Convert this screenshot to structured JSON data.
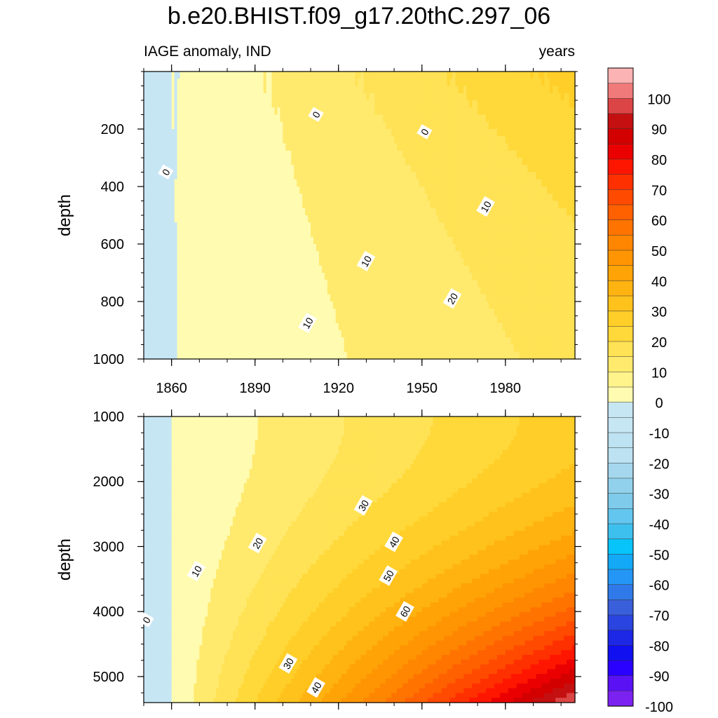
{
  "title": "b.e20.BHIST.f09_g17.20thC.297_06",
  "chart_data": {
    "type": "heatmap",
    "title": "b.e20.BHIST.f09_g17.20thC.297_06",
    "variable": "IAGE anomaly, IND",
    "units": "years",
    "x": {
      "label": "",
      "range": [
        1850,
        2005
      ],
      "ticks": [
        1860,
        1890,
        1920,
        1950,
        1980
      ],
      "tick_labels": [
        "1860",
        "1890",
        "1920",
        "1950",
        "1980"
      ]
    },
    "colorbar": {
      "levels": [
        -100,
        -95,
        -90,
        -85,
        -80,
        -75,
        -70,
        -65,
        -60,
        -55,
        -50,
        -45,
        -40,
        -35,
        -30,
        -25,
        -20,
        -15,
        -10,
        -5,
        0,
        5,
        10,
        15,
        20,
        25,
        30,
        35,
        40,
        45,
        50,
        55,
        60,
        65,
        70,
        75,
        80,
        85,
        90,
        95,
        100
      ],
      "tick_labels": [
        "100",
        "90",
        "80",
        "70",
        "60",
        "50",
        "40",
        "30",
        "20",
        "10",
        "0",
        "-10",
        "-20",
        "-30",
        "-40",
        "-50",
        "-60",
        "-70",
        "-80",
        "-90",
        "-100"
      ],
      "colors": [
        "#7c22f0",
        "#5a12f5",
        "#2a00ff",
        "#1010f0",
        "#1d27e6",
        "#2a44df",
        "#3a5fda",
        "#2f7ae8",
        "#2496f5",
        "#13a9f6",
        "#07c4fb",
        "#3ec0ef",
        "#63c6ef",
        "#7ecbeb",
        "#92d1eb",
        "#a5d8ee",
        "#bde2f2",
        "#bde2f2",
        "#c6e6f4",
        "#c6e6f4",
        "#fffbb0",
        "#fff38c",
        "#ffea6e",
        "#ffe255",
        "#ffd83a",
        "#ffce28",
        "#ffc21c",
        "#ffb311",
        "#ffa307",
        "#ff9502",
        "#ff8600",
        "#ff7400",
        "#ff6000",
        "#ff4a00",
        "#ff3000",
        "#ff1600",
        "#ea0000",
        "#d30000",
        "#c41010",
        "#dc4545",
        "#f07a7a",
        "#fcb3b3"
      ]
    },
    "panels": [
      {
        "name": "upper-ocean",
        "ylabel": "depth",
        "ylim": [
          0,
          1000
        ],
        "y_ticks": [
          200,
          400,
          600,
          800,
          1000
        ],
        "y_tick_labels": [
          "200",
          "400",
          "600",
          "800",
          "1000"
        ],
        "contour_levels_shown": [
          0,
          10,
          20
        ],
        "contour_labels": [
          {
            "text": "0",
            "year": 1858,
            "depth": 350
          },
          {
            "text": "0",
            "year": 1912,
            "depth": 150
          },
          {
            "text": "0",
            "year": 1951,
            "depth": 210
          },
          {
            "text": "10",
            "year": 1973,
            "depth": 470
          },
          {
            "text": "10",
            "year": 1930,
            "depth": 660
          },
          {
            "text": "20",
            "year": 1961,
            "depth": 790
          },
          {
            "text": "10",
            "year": 1909,
            "depth": 875
          }
        ]
      },
      {
        "name": "deep-ocean",
        "ylabel": "depth",
        "ylim": [
          1000,
          5400
        ],
        "y_ticks": [
          1000,
          2000,
          3000,
          4000,
          5000
        ],
        "y_tick_labels": [
          "1000",
          "2000",
          "3000",
          "4000",
          "5000"
        ],
        "contour_levels_shown": [
          0,
          10,
          20,
          30,
          40,
          50,
          60
        ],
        "contour_labels": [
          {
            "text": "0",
            "year": 1851,
            "depth": 4130
          },
          {
            "text": "10",
            "year": 1869,
            "depth": 3380
          },
          {
            "text": "20",
            "year": 1891,
            "depth": 2950
          },
          {
            "text": "30",
            "year": 1929,
            "depth": 2370
          },
          {
            "text": "40",
            "year": 1940,
            "depth": 2930
          },
          {
            "text": "50",
            "year": 1938,
            "depth": 3450
          },
          {
            "text": "60",
            "year": 1944,
            "depth": 4000
          },
          {
            "text": "30",
            "year": 1902,
            "depth": 4800
          },
          {
            "text": "40",
            "year": 1912,
            "depth": 5170
          }
        ]
      }
    ]
  }
}
